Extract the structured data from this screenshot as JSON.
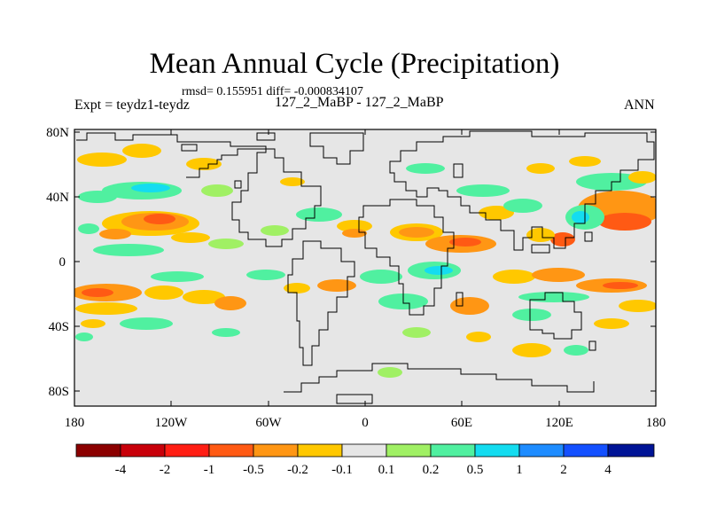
{
  "header": {
    "title": "Mean Annual Cycle (Precipitation)",
    "stats": "rmsd= 0.155951 diff= -0.000834107",
    "experiment": "Expt = teydz1-teydz",
    "case": "127_2_MaBP - 127_2_MaBP",
    "season": "ANN"
  },
  "map": {
    "lat_labels": [
      "80N",
      "40N",
      "0",
      "40S",
      "80S"
    ],
    "lon_labels": [
      "180",
      "120W",
      "60W",
      "0",
      "60E",
      "120E",
      "180"
    ],
    "background_color": "#e6e6e6"
  },
  "colorbar": {
    "labels": [
      "-4",
      "-2",
      "-1",
      "-0.5",
      "-0.2",
      "-0.1",
      "0.1",
      "0.2",
      "0.5",
      "1",
      "2",
      "4"
    ],
    "colors": [
      "#8b0000",
      "#c8000a",
      "#ff1e14",
      "#ff5a14",
      "#ff9614",
      "#ffc800",
      "#e6e6e6",
      "#a0f064",
      "#50f0a0",
      "#14dcf0",
      "#1e8cff",
      "#1450ff",
      "#001496"
    ]
  }
}
